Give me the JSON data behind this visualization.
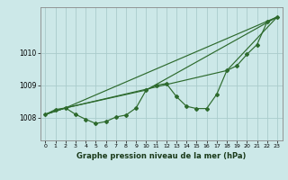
{
  "xlabel": "Graphe pression niveau de la mer (hPa)",
  "background_color": "#cce8e8",
  "grid_color": "#aacccc",
  "line_color": "#2d6a2d",
  "x_ticks": [
    0,
    1,
    2,
    3,
    4,
    5,
    6,
    7,
    8,
    9,
    10,
    11,
    12,
    13,
    14,
    15,
    16,
    17,
    18,
    19,
    20,
    21,
    22,
    23
  ],
  "ylim": [
    1007.3,
    1011.4
  ],
  "yticks": [
    1008,
    1009,
    1010
  ],
  "main_x": [
    0,
    1,
    2,
    3,
    4,
    5,
    6,
    7,
    8,
    9,
    10,
    11,
    12,
    13,
    14,
    15,
    16,
    17,
    18,
    19,
    20,
    21,
    22,
    23
  ],
  "main_y": [
    1008.1,
    1008.25,
    1008.3,
    1008.1,
    1007.95,
    1007.82,
    1007.88,
    1008.02,
    1008.08,
    1008.3,
    1008.85,
    1009.0,
    1009.05,
    1008.65,
    1008.35,
    1008.28,
    1008.28,
    1008.72,
    1009.45,
    1009.6,
    1009.95,
    1010.25,
    1010.95,
    1011.1
  ],
  "line2_x": [
    0,
    2,
    23
  ],
  "line2_y": [
    1008.1,
    1008.3,
    1011.1
  ],
  "line3_x": [
    0,
    2,
    10,
    23
  ],
  "line3_y": [
    1008.1,
    1008.3,
    1008.85,
    1011.1
  ],
  "line4_x": [
    0,
    2,
    18,
    23
  ],
  "line4_y": [
    1008.1,
    1008.3,
    1009.45,
    1011.1
  ]
}
